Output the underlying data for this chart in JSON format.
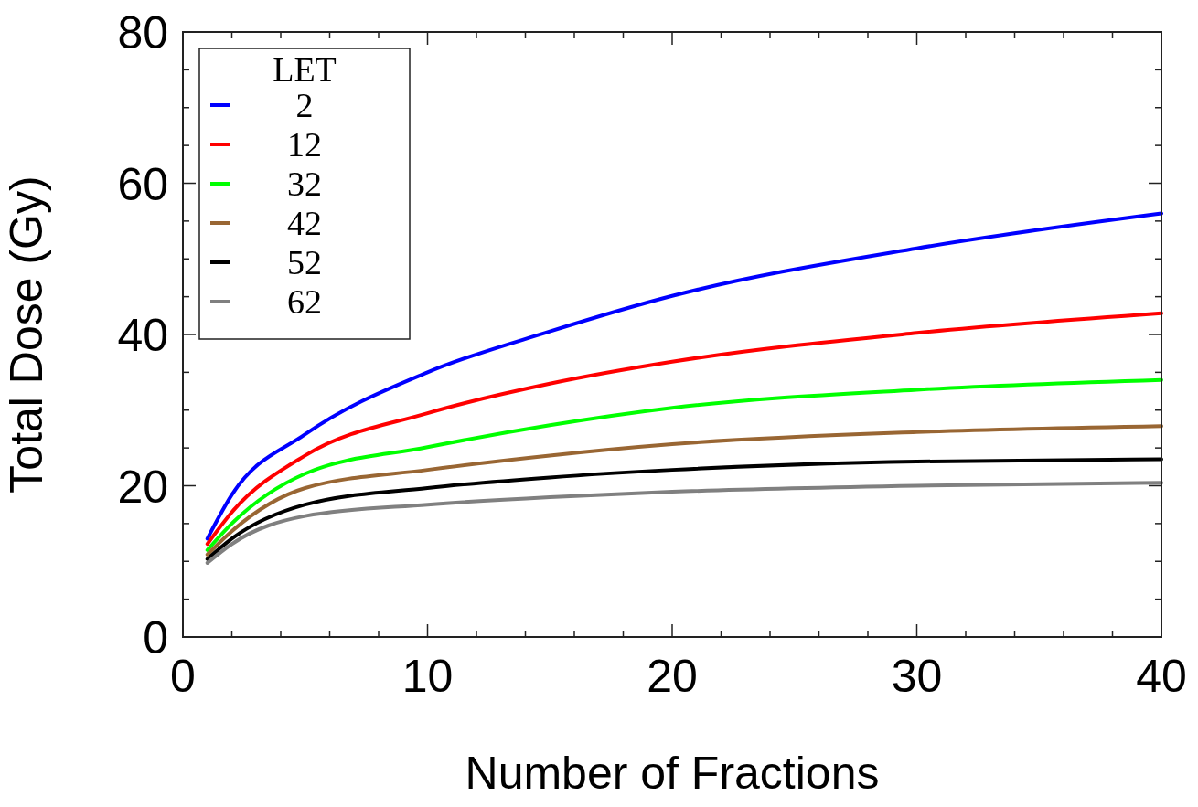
{
  "chart_data": {
    "type": "line",
    "xlabel": "Number of Fractions",
    "ylabel": "Total Dose (Gy)",
    "legend_title": "LET",
    "legend": "top left",
    "marker": "none",
    "line_style": "solid",
    "grid": false,
    "x": [
      1,
      2,
      5,
      10,
      15,
      20,
      30,
      40
    ],
    "xlim": [
      0,
      40
    ],
    "ylim": [
      0,
      80
    ],
    "xticks": [
      0,
      {
        "value": 2,
        "label": null
      },
      {
        "value": 4,
        "label": null
      },
      {
        "value": 6,
        "label": null
      },
      {
        "value": 8,
        "label": null
      },
      10,
      {
        "value": 12,
        "label": null
      },
      {
        "value": 14,
        "label": null
      },
      {
        "value": 16,
        "label": null
      },
      {
        "value": 18,
        "label": null
      },
      20,
      {
        "value": 22,
        "label": null
      },
      {
        "value": 24,
        "label": null
      },
      {
        "value": 26,
        "label": null
      },
      {
        "value": 28,
        "label": null
      },
      30,
      {
        "value": 32,
        "label": null
      },
      {
        "value": 34,
        "label": null
      },
      {
        "value": 36,
        "label": null
      },
      {
        "value": 38,
        "label": null
      },
      40
    ],
    "yticks": [
      0,
      {
        "value": 5,
        "label": null
      },
      {
        "value": 10,
        "label": null
      },
      {
        "value": 15,
        "label": null
      },
      20,
      {
        "value": 25,
        "label": null
      },
      {
        "value": 30,
        "label": null
      },
      {
        "value": 35,
        "label": null
      },
      40,
      {
        "value": 45,
        "label": null
      },
      {
        "value": 50,
        "label": null
      },
      {
        "value": 55,
        "label": null
      },
      60,
      {
        "value": 65,
        "label": null
      },
      {
        "value": 70,
        "label": null
      },
      {
        "value": 75,
        "label": null
      },
      80
    ],
    "series": [
      {
        "name": "2",
        "color": "#0000ff",
        "values": [
          13,
          18.8,
          26.8,
          35,
          40.4,
          45.1,
          51.4,
          56
        ]
      },
      {
        "name": "12",
        "color": "#ff0000",
        "values": [
          12.3,
          16.5,
          24,
          29.6,
          33.5,
          36.4,
          40.2,
          42.8
        ]
      },
      {
        "name": "32",
        "color": "#00ff00",
        "values": [
          11.5,
          15,
          21.6,
          25.1,
          28,
          30.3,
          32.7,
          34
        ]
      },
      {
        "name": "42",
        "color": "#996633",
        "values": [
          10.9,
          14,
          19.7,
          22.1,
          24,
          25.5,
          27.1,
          27.9
        ]
      },
      {
        "name": "52",
        "color": "#000000",
        "values": [
          10.3,
          13,
          17.5,
          19.7,
          21.1,
          22.1,
          23.2,
          23.5
        ]
      },
      {
        "name": "62",
        "color": "#808080",
        "values": [
          9.8,
          12.3,
          16,
          17.5,
          18.5,
          19.2,
          20,
          20.4
        ]
      }
    ]
  }
}
